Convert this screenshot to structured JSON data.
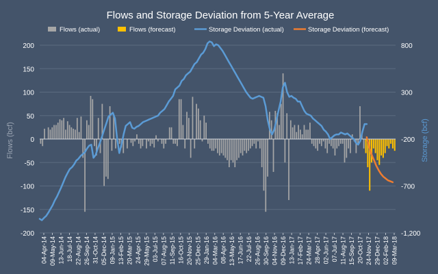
{
  "chart_data": {
    "type": "bar+line",
    "title": "Flows and Storage Deviation from 5-Year Average",
    "ylabel": "Flows (bcf)",
    "y2label": "Storage (bcf)",
    "ylim": [
      -200,
      200
    ],
    "y2lim": [
      -1200,
      800
    ],
    "yticks": [
      200,
      150,
      100,
      50,
      0,
      -50,
      -100,
      -150,
      -200
    ],
    "y2ticks": [
      800,
      300,
      -200,
      -700,
      -1200
    ],
    "y2tick_labels": [
      "800",
      "300",
      "-200",
      "-700",
      "-1,200"
    ],
    "legend": [
      {
        "name": "Flows (actual)",
        "kind": "bar",
        "color": "#a6a6a6"
      },
      {
        "name": "Flows (forecast)",
        "kind": "bar",
        "color": "#ffc000"
      },
      {
        "name": "Storage Deviation (actual)",
        "kind": "line",
        "color": "#5b9bd5"
      },
      {
        "name": "Storage Deviation (forecast)",
        "kind": "line",
        "color": "#ed7d31"
      }
    ],
    "legend_position": "top",
    "grid": true,
    "x_range": [
      "2014-04-04",
      "2018-03-09"
    ],
    "xticks": [
      "04-Apr-14",
      "09-May-14",
      "13-Jun-14",
      "18-Jul-14",
      "22-Aug-14",
      "26-Sep-14",
      "31-Oct-14",
      "05-Dec-14",
      "09-Jan-15",
      "13-Feb-15",
      "20-Mar-15",
      "24-Apr-15",
      "29-May-15",
      "03-Jul-15",
      "07-Aug-15",
      "11-Sep-15",
      "16-Oct-15",
      "20-Nov-15",
      "25-Dec-15",
      "29-Jan-16",
      "04-Mar-16",
      "08-Apr-16",
      "13-May-16",
      "17-Jun-16",
      "22-Jul-16",
      "26-Aug-16",
      "30-Sep-16",
      "04-Nov-16",
      "09-Dec-16",
      "13-Jan-17",
      "17-Feb-17",
      "24-Mar-17",
      "28-Apr-17",
      "02-Jun-17",
      "07-Jul-17",
      "11-Aug-17",
      "15-Sep-17",
      "20-Oct-17",
      "24-Nov-17",
      "29-Dec-17",
      "02-Feb-18",
      "09-Mar-18"
    ],
    "flows_actual": [
      -10,
      -15,
      22,
      0,
      25,
      20,
      25,
      30,
      30,
      35,
      42,
      40,
      45,
      20,
      38,
      30,
      25,
      22,
      20,
      45,
      15,
      48,
      -40,
      -155,
      40,
      30,
      92,
      85,
      -15,
      -35,
      45,
      -30,
      75,
      -100,
      -80,
      -85,
      70,
      -25,
      50,
      -20,
      0,
      -10,
      -18,
      -30,
      0,
      -20,
      0,
      -8,
      -15,
      -5,
      10,
      -10,
      -20,
      -15,
      0,
      -20,
      -5,
      -15,
      -10,
      -18,
      8,
      -5,
      0,
      -10,
      -20,
      -10,
      0,
      25,
      25,
      -10,
      -10,
      -15,
      85,
      85,
      30,
      -20,
      58,
      45,
      -40,
      90,
      -20,
      75,
      65,
      40,
      -5,
      50,
      35,
      -10,
      -20,
      -25,
      -25,
      -20,
      -30,
      -35,
      -30,
      -35,
      -40,
      -45,
      -60,
      -45,
      -50,
      -60,
      -45,
      -40,
      -30,
      -35,
      -25,
      -30,
      -25,
      -20,
      -15,
      -10,
      -20,
      -5,
      -20,
      -60,
      -110,
      -155,
      -80,
      58,
      40,
      -70,
      60,
      55,
      30,
      75,
      140,
      -50,
      55,
      -130,
      40,
      25,
      30,
      15,
      30,
      20,
      10,
      30,
      20,
      20,
      35,
      -10,
      -15,
      -20,
      -25,
      -10,
      -15,
      -5,
      -20,
      -30,
      -10,
      -15,
      -20,
      -35,
      -20,
      -15,
      -10,
      -10,
      -50,
      -40,
      -20,
      -30,
      10,
      -5,
      -30,
      -10,
      70,
      15,
      -20
    ],
    "flows_forecast": [
      -30,
      -60,
      -110,
      -50,
      -20,
      -30,
      -45,
      -55,
      -35,
      -40,
      -30,
      -15,
      -20,
      -10,
      -20,
      -25
    ],
    "storage_actual": [
      -1050,
      -1065,
      -1040,
      -1020,
      -985,
      -945,
      -905,
      -855,
      -815,
      -765,
      -715,
      -660,
      -605,
      -560,
      -520,
      -500,
      -470,
      -430,
      -410,
      -380,
      -360,
      -340,
      -300,
      -270,
      -260,
      -400,
      -370,
      -300,
      -240,
      -170,
      -100,
      -30,
      40,
      60,
      80,
      20,
      -200,
      -350,
      -260,
      -150,
      -60,
      -40,
      -20,
      -80,
      -90,
      -70,
      -60,
      -40,
      -20,
      -10,
      0,
      10,
      20,
      30,
      40,
      50,
      80,
      100,
      120,
      160,
      200,
      230,
      260,
      330,
      350,
      370,
      420,
      440,
      480,
      500,
      520,
      560,
      600,
      620,
      660,
      700,
      720,
      760,
      820,
      840,
      830,
      790,
      810,
      800,
      770,
      740,
      700,
      660,
      620,
      580,
      540,
      500,
      460,
      420,
      380,
      340,
      300,
      270,
      240,
      230,
      240,
      250,
      260,
      250,
      240,
      150,
      0,
      -100,
      -150,
      -100,
      0,
      100,
      200,
      350,
      400,
      300,
      250,
      260,
      240,
      230,
      200,
      200,
      150,
      100,
      70,
      60,
      50,
      20,
      0,
      -20,
      -40,
      -60,
      -100,
      -120,
      -150,
      -200,
      -180,
      -160,
      -150,
      -150,
      -130,
      -140,
      -150,
      -140,
      -160,
      -180,
      -200,
      -240,
      -260,
      -220,
      -120,
      -40,
      -40
    ],
    "storage_forecast": [
      -180,
      -280,
      -360,
      -420,
      -480,
      -530,
      -570,
      -600,
      -620,
      -640,
      -650,
      -660
    ]
  }
}
